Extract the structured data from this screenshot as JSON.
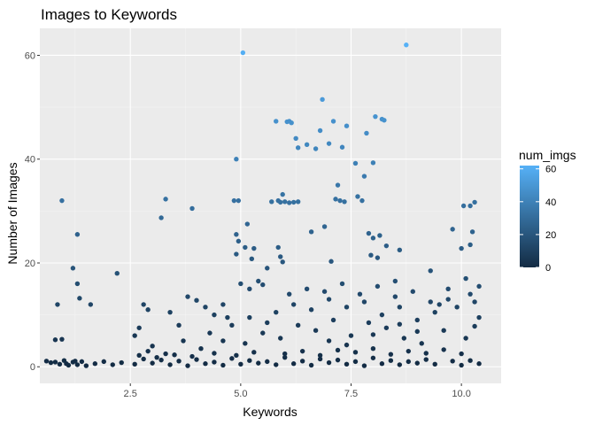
{
  "chart_data": {
    "type": "scatter",
    "title": "Images to Keywords",
    "xlabel": "Keywords",
    "ylabel": "Number of Images",
    "xlim": [
      0.45,
      10.9
    ],
    "ylim": [
      -3.2,
      65.2
    ],
    "x_ticks": [
      2.5,
      5.0,
      7.5,
      10.0
    ],
    "x_tick_labels": [
      "2.5",
      "5.0",
      "7.5",
      "10.0"
    ],
    "y_ticks": [
      0,
      20,
      40,
      60
    ],
    "y_tick_labels": [
      "0",
      "20",
      "40",
      "60"
    ],
    "grid": true,
    "background": "#ebebeb",
    "legend": {
      "title": "num_imgs",
      "position": "right",
      "type": "colorbar",
      "min": 0,
      "max": 62,
      "ticks": [
        0,
        20,
        40,
        60
      ],
      "tick_labels": [
        "0",
        "20",
        "40",
        "60"
      ],
      "color_low": "#132b43",
      "color_high": "#56b1f7"
    },
    "points": [
      [
        0.95,
        32
      ],
      [
        0.85,
        12
      ],
      [
        0.8,
        5.2
      ],
      [
        0.95,
        5.3
      ],
      [
        1.3,
        25.5
      ],
      [
        1.2,
        19
      ],
      [
        1.3,
        16
      ],
      [
        1.35,
        13.2
      ],
      [
        1.6,
        12
      ],
      [
        2.2,
        18
      ],
      [
        2.7,
        7.5
      ],
      [
        2.8,
        12
      ],
      [
        2.9,
        11
      ],
      [
        3.2,
        28.7
      ],
      [
        3.3,
        32.3
      ],
      [
        3.4,
        10.5
      ],
      [
        3.6,
        8
      ],
      [
        3.9,
        30.5
      ],
      [
        3.8,
        13.5
      ],
      [
        4.0,
        12.8
      ],
      [
        4.2,
        11.5
      ],
      [
        4.4,
        10
      ],
      [
        4.6,
        12
      ],
      [
        4.7,
        9.5
      ],
      [
        4.9,
        40
      ],
      [
        4.85,
        32
      ],
      [
        4.95,
        32
      ],
      [
        4.9,
        25.5
      ],
      [
        4.95,
        24.2
      ],
      [
        4.9,
        21.7
      ],
      [
        5.05,
        60.5
      ],
      [
        5.1,
        23
      ],
      [
        5.15,
        27.5
      ],
      [
        5.25,
        20.8
      ],
      [
        5.3,
        22.8
      ],
      [
        5.0,
        16
      ],
      [
        5.2,
        15
      ],
      [
        5.4,
        16.5
      ],
      [
        5.5,
        15.8
      ],
      [
        5.6,
        19
      ],
      [
        5.7,
        31.8
      ],
      [
        5.8,
        47.3
      ],
      [
        5.85,
        32
      ],
      [
        5.9,
        31.7
      ],
      [
        5.95,
        33.2
      ],
      [
        6.0,
        31.8
      ],
      [
        5.85,
        23
      ],
      [
        5.9,
        21.2
      ],
      [
        5.95,
        20.2
      ],
      [
        6.05,
        47.2
      ],
      [
        6.1,
        47.3
      ],
      [
        6.15,
        47
      ],
      [
        6.1,
        31.6
      ],
      [
        6.2,
        31.7
      ],
      [
        6.3,
        31.8
      ],
      [
        6.25,
        44
      ],
      [
        6.3,
        42.2
      ],
      [
        6.5,
        42.8
      ],
      [
        6.6,
        26
      ],
      [
        6.7,
        42
      ],
      [
        6.8,
        45.5
      ],
      [
        6.85,
        51.5
      ],
      [
        6.9,
        27
      ],
      [
        7.0,
        43
      ],
      [
        7.1,
        47.3
      ],
      [
        7.15,
        32.3
      ],
      [
        7.2,
        35
      ],
      [
        7.25,
        32
      ],
      [
        7.35,
        31.8
      ],
      [
        7.3,
        42.3
      ],
      [
        7.4,
        46.4
      ],
      [
        7.05,
        20.3
      ],
      [
        7.6,
        39.2
      ],
      [
        7.65,
        32.8
      ],
      [
        7.75,
        32
      ],
      [
        7.8,
        36.7
      ],
      [
        7.85,
        45
      ],
      [
        7.9,
        25.7
      ],
      [
        8.0,
        39.3
      ],
      [
        8.0,
        24.8
      ],
      [
        8.05,
        48.2
      ],
      [
        8.2,
        47.7
      ],
      [
        8.25,
        47.5
      ],
      [
        8.15,
        25.3
      ],
      [
        8.3,
        23.3
      ],
      [
        8.1,
        21
      ],
      [
        7.95,
        21.5
      ],
      [
        8.5,
        16.5
      ],
      [
        8.6,
        22.5
      ],
      [
        8.75,
        62
      ],
      [
        9.3,
        18.5
      ],
      [
        9.5,
        12
      ],
      [
        9.7,
        15
      ],
      [
        9.8,
        26.5
      ],
      [
        10.0,
        22.8
      ],
      [
        10.05,
        31
      ],
      [
        10.2,
        31
      ],
      [
        10.25,
        26
      ],
      [
        10.3,
        31.7
      ],
      [
        10.2,
        23.5
      ],
      [
        10.4,
        15.5
      ],
      [
        10.1,
        17
      ],
      [
        0.6,
        1.1
      ],
      [
        0.7,
        0.8
      ],
      [
        0.9,
        0.5
      ],
      [
        1.0,
        1.2
      ],
      [
        1.1,
        0.3
      ],
      [
        1.2,
        0.9
      ],
      [
        1.3,
        0.4
      ],
      [
        1.4,
        1.0
      ],
      [
        1.7,
        0.6
      ],
      [
        1.9,
        1.0
      ],
      [
        2.1,
        0.4
      ],
      [
        2.3,
        0.8
      ],
      [
        2.6,
        0.5
      ],
      [
        2.8,
        1.5
      ],
      [
        3.0,
        0.7
      ],
      [
        3.2,
        1.3
      ],
      [
        3.4,
        0.4
      ],
      [
        3.6,
        1.1
      ],
      [
        3.8,
        0.2
      ],
      [
        4.0,
        1.4
      ],
      [
        4.2,
        0.6
      ],
      [
        4.4,
        0.9
      ],
      [
        4.6,
        0.3
      ],
      [
        4.8,
        1.6
      ],
      [
        5.0,
        0.5
      ],
      [
        5.2,
        1.2
      ],
      [
        5.4,
        0.7
      ],
      [
        5.6,
        1.0
      ],
      [
        5.8,
        0.4
      ],
      [
        6.0,
        1.8
      ],
      [
        6.2,
        0.6
      ],
      [
        6.4,
        1.1
      ],
      [
        6.6,
        0.3
      ],
      [
        6.8,
        1.5
      ],
      [
        7.0,
        0.8
      ],
      [
        7.2,
        1.3
      ],
      [
        7.4,
        0.5
      ],
      [
        7.6,
        1.0
      ],
      [
        7.8,
        0.2
      ],
      [
        8.0,
        1.7
      ],
      [
        8.2,
        0.6
      ],
      [
        8.4,
        1.2
      ],
      [
        8.6,
        0.4
      ],
      [
        8.8,
        1.0
      ],
      [
        9.0,
        0.7
      ],
      [
        9.2,
        1.4
      ],
      [
        9.4,
        0.5
      ],
      [
        9.8,
        1.1
      ],
      [
        10.0,
        0.3
      ],
      [
        10.2,
        1.2
      ],
      [
        10.4,
        0.6
      ],
      [
        2.9,
        3.0
      ],
      [
        3.3,
        2.5
      ],
      [
        4.1,
        3.5
      ],
      [
        4.6,
        5.0
      ],
      [
        5.1,
        4.5
      ],
      [
        5.5,
        6.5
      ],
      [
        5.9,
        5.5
      ],
      [
        6.3,
        8.0
      ],
      [
        6.7,
        7.0
      ],
      [
        7.1,
        9.0
      ],
      [
        7.5,
        6.0
      ],
      [
        7.9,
        8.5
      ],
      [
        8.3,
        7.5
      ],
      [
        8.7,
        5.5
      ],
      [
        9.1,
        4.5
      ],
      [
        9.6,
        7.0
      ],
      [
        10.1,
        5.5
      ],
      [
        10.4,
        9.5
      ],
      [
        5.8,
        10.5
      ],
      [
        6.2,
        12.0
      ],
      [
        6.6,
        11.0
      ],
      [
        7.0,
        13.0
      ],
      [
        7.4,
        11.5
      ],
      [
        7.8,
        12.5
      ],
      [
        8.2,
        10.0
      ],
      [
        8.6,
        11.5
      ],
      [
        9.0,
        9.0
      ],
      [
        9.4,
        10.5
      ],
      [
        9.9,
        11.5
      ],
      [
        10.3,
        12.5
      ],
      [
        6.0,
        2.5
      ],
      [
        6.4,
        3.0
      ],
      [
        6.8,
        2.2
      ],
      [
        7.2,
        3.2
      ],
      [
        7.6,
        2.8
      ],
      [
        8.0,
        3.5
      ],
      [
        8.4,
        2.4
      ],
      [
        8.8,
        3.0
      ],
      [
        9.2,
        2.6
      ],
      [
        9.6,
        3.3
      ],
      [
        10.0,
        2.5
      ],
      [
        5.3,
        2.8
      ],
      [
        4.9,
        2.2
      ],
      [
        4.4,
        2.6
      ],
      [
        3.9,
        2.0
      ],
      [
        3.5,
        2.3
      ],
      [
        3.1,
        1.8
      ],
      [
        2.7,
        2.2
      ],
      [
        0.8,
        0.9
      ],
      [
        1.05,
        0.6
      ],
      [
        1.25,
        1.1
      ],
      [
        1.5,
        0.2
      ],
      [
        4.8,
        8.0
      ],
      [
        5.2,
        9.5
      ],
      [
        5.6,
        8.5
      ],
      [
        6.1,
        14.0
      ],
      [
        6.5,
        15.0
      ],
      [
        6.9,
        14.5
      ],
      [
        7.3,
        16.0
      ],
      [
        7.7,
        14.0
      ],
      [
        8.1,
        15.5
      ],
      [
        8.5,
        13.5
      ],
      [
        8.9,
        14.5
      ],
      [
        9.3,
        12.5
      ],
      [
        9.7,
        13.0
      ],
      [
        10.2,
        14.0
      ],
      [
        4.3,
        6.5
      ],
      [
        3.7,
        5.0
      ],
      [
        3.0,
        4.0
      ],
      [
        2.6,
        6.0
      ],
      [
        7.0,
        5.0
      ],
      [
        7.4,
        4.2
      ],
      [
        8.0,
        6.2
      ],
      [
        8.6,
        8.2
      ],
      [
        9.0,
        6.8
      ],
      [
        10.3,
        7.8
      ]
    ]
  }
}
